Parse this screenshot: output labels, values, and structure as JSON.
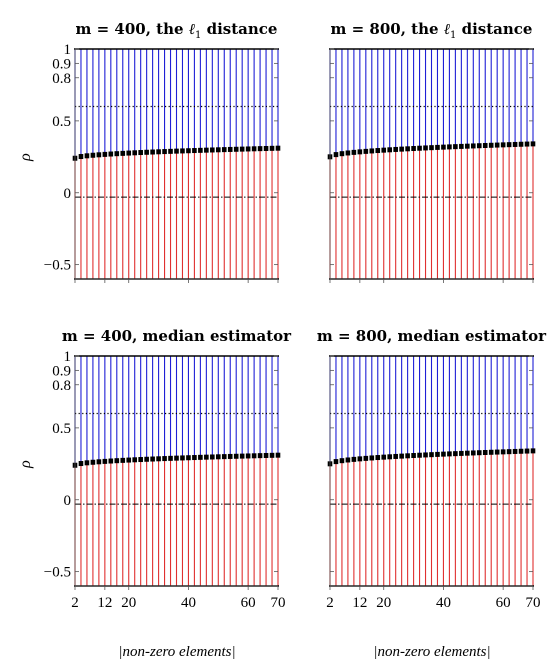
{
  "figure": {
    "ylabel": "ρ",
    "xlabel": "|non-zero elements|"
  },
  "chart_data": [
    {
      "type": "box",
      "title": "m = 400, the ℓ1 distance",
      "ylabel": "ρ",
      "ylim": [
        -0.6,
        1.0
      ],
      "yticks": [
        -0.5,
        0,
        0.5,
        0.8,
        0.9,
        1
      ],
      "ytick_labels": [
        "−0.5",
        "0",
        "0.5",
        "0.8",
        "0.9",
        "1"
      ],
      "xticks": [
        2,
        12,
        20,
        40,
        60,
        70
      ],
      "xlim": [
        2,
        70
      ],
      "n_boxes": 35,
      "box_x_start": 2,
      "box_x_step": 2,
      "whisker_low": -0.6,
      "whisker_high": 1.0,
      "median_start": 0.24,
      "median_end": 0.31,
      "upper_reference": 0.6,
      "lower_reference": -0.03,
      "colors": {
        "upper": "#1f1fd6",
        "lower": "#e03030",
        "median": "#000000"
      }
    },
    {
      "type": "box",
      "title": "m = 800, the ℓ1 distance",
      "ylim": [
        -0.6,
        1.0
      ],
      "xticks": [
        2,
        12,
        20,
        40,
        60,
        70
      ],
      "xlim": [
        2,
        70
      ],
      "n_boxes": 35,
      "box_x_start": 2,
      "box_x_step": 2,
      "whisker_low": -0.6,
      "whisker_high": 1.0,
      "median_start": 0.25,
      "median_end": 0.34,
      "upper_reference": 0.6,
      "lower_reference": -0.03,
      "colors": {
        "upper": "#1f1fd6",
        "lower": "#e03030",
        "median": "#000000"
      }
    },
    {
      "type": "box",
      "title": "m = 400, median estimator",
      "ylabel": "ρ",
      "ylim": [
        -0.6,
        1.0
      ],
      "yticks": [
        -0.5,
        0,
        0.5,
        0.8,
        0.9,
        1
      ],
      "ytick_labels": [
        "−0.5",
        "0",
        "0.5",
        "0.8",
        "0.9",
        "1"
      ],
      "xticks": [
        2,
        12,
        20,
        40,
        60,
        70
      ],
      "xtick_labels": [
        "2",
        "12",
        "20",
        "40",
        "60",
        "70"
      ],
      "xlabel": "|non-zero elements|",
      "xlim": [
        2,
        70
      ],
      "n_boxes": 35,
      "box_x_start": 2,
      "box_x_step": 2,
      "whisker_low": -0.6,
      "whisker_high": 1.0,
      "median_start": 0.24,
      "median_end": 0.31,
      "upper_reference": 0.6,
      "lower_reference": -0.03,
      "colors": {
        "upper": "#1f1fd6",
        "lower": "#e03030",
        "median": "#000000"
      }
    },
    {
      "type": "box",
      "title": "m = 800, median estimator",
      "ylim": [
        -0.6,
        1.0
      ],
      "xticks": [
        2,
        12,
        20,
        40,
        60,
        70
      ],
      "xtick_labels": [
        "2",
        "12",
        "20",
        "40",
        "60",
        "70"
      ],
      "xlabel": "|non-zero elements|",
      "xlim": [
        2,
        70
      ],
      "n_boxes": 35,
      "box_x_start": 2,
      "box_x_step": 2,
      "whisker_low": -0.6,
      "whisker_high": 1.0,
      "median_start": 0.25,
      "median_end": 0.34,
      "upper_reference": 0.6,
      "lower_reference": -0.03,
      "colors": {
        "upper": "#1f1fd6",
        "lower": "#e03030",
        "median": "#000000"
      }
    }
  ]
}
